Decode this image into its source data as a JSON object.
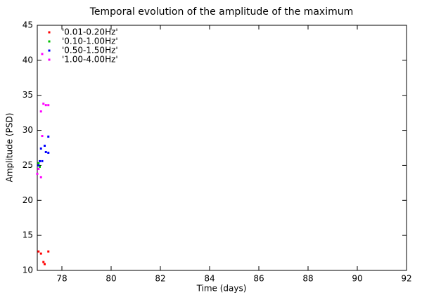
{
  "chart_data": {
    "type": "scatter",
    "title": "Temporal evolution of the amplitude of the maximum",
    "x_label": "Time (days)",
    "y_label": "Amplitude (PSD)",
    "xlim": [
      77,
      92
    ],
    "ylim": [
      10,
      45
    ],
    "xticks": [
      78,
      80,
      82,
      84,
      86,
      88,
      90,
      92
    ],
    "yticks": [
      10,
      15,
      20,
      25,
      30,
      35,
      40,
      45
    ],
    "legend": "top-left",
    "series": [
      {
        "name": "'0.01-0.20Hz'",
        "color": "#ff0000",
        "x": [
          77.05,
          77.15,
          77.25,
          77.3,
          77.45
        ],
        "values": [
          12.7,
          12.4,
          11.2,
          10.9,
          12.7
        ]
      },
      {
        "name": "'0.10-1.00Hz'",
        "color": "#00c000",
        "x": [
          77.05,
          77.1
        ],
        "values": [
          25.3,
          24.8
        ]
      },
      {
        "name": "'0.50-1.50Hz'",
        "color": "#0000ff",
        "x": [
          77.05,
          77.1,
          77.15,
          77.2,
          77.3,
          77.35,
          77.45,
          77.45
        ],
        "values": [
          25.0,
          25.6,
          27.4,
          25.6,
          27.8,
          26.9,
          29.1,
          26.8
        ]
      },
      {
        "name": "'1.00-4.00Hz'",
        "color": "#ff00ff",
        "x": [
          77.2,
          77.25,
          77.35,
          77.45,
          77.15,
          77.2,
          77.05,
          77.0,
          77.15
        ],
        "values": [
          40.9,
          33.8,
          33.6,
          33.6,
          32.7,
          29.2,
          24.5,
          23.8,
          23.3
        ]
      }
    ]
  }
}
